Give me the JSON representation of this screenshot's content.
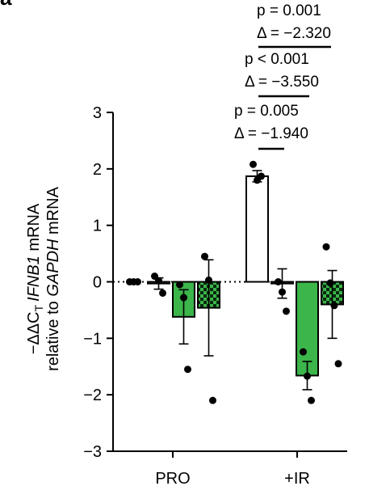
{
  "panel_label": "a",
  "chart_data": {
    "type": "bar",
    "groups": [
      "PRO",
      "+IR"
    ],
    "ylim": [
      -3,
      3
    ],
    "yticks": [
      "3",
      "2",
      "1",
      "0",
      "−1",
      "−2",
      "−3"
    ],
    "ylabel_line1_prefix": "−ΔΔC",
    "ylabel_line1_sub": "T",
    "ylabel_line1_gene": "IFNB1",
    "ylabel_line1_suffix": " mRNA",
    "ylabel_line2_prefix": "relative to ",
    "ylabel_line2_gene": "GAPDH",
    "ylabel_line2_suffix": " mRNA",
    "series": [
      {
        "fill": "none",
        "color": "#ffffff"
      },
      {
        "fill": "none",
        "color": "#ffffff"
      },
      {
        "fill": "solid",
        "color": "#3cb54a"
      },
      {
        "fill": "checker",
        "color": "#3cb54a"
      }
    ],
    "bars": [
      {
        "group": 0,
        "series": 0,
        "mean": 0.0,
        "err": 0.0,
        "points": [
          0.0,
          0.0,
          0.0
        ]
      },
      {
        "group": 0,
        "series": 1,
        "mean": -0.03,
        "err": 0.1,
        "points": [
          0.1,
          0.02,
          -0.2
        ]
      },
      {
        "group": 0,
        "series": 2,
        "mean": -0.62,
        "err": 0.48,
        "points": [
          -0.05,
          -0.28,
          -1.55
        ]
      },
      {
        "group": 0,
        "series": 3,
        "mean": -0.46,
        "err": 0.85,
        "points": [
          0.45,
          0.03,
          -2.1
        ]
      },
      {
        "group": 1,
        "series": 0,
        "mean": 1.87,
        "err": 0.1,
        "points": [
          2.08,
          1.8,
          1.87
        ]
      },
      {
        "group": 1,
        "series": 1,
        "mean": -0.03,
        "err": 0.26,
        "points": [
          0.0,
          -0.18,
          -0.52
        ]
      },
      {
        "group": 1,
        "series": 2,
        "mean": -1.66,
        "err": 0.25,
        "points": [
          -1.24,
          -1.67,
          -2.1
        ]
      },
      {
        "group": 1,
        "series": 3,
        "mean": -0.4,
        "err": 0.6,
        "points": [
          0.62,
          -0.02,
          -0.42,
          -1.45
        ]
      }
    ],
    "annotations": [
      {
        "p": "p = 0.005",
        "delta": "Δ = −1.940"
      },
      {
        "p": "p < 0.001",
        "delta": "Δ = −3.550"
      },
      {
        "p": "p = 0.001",
        "delta": "Δ = −2.320"
      }
    ]
  }
}
